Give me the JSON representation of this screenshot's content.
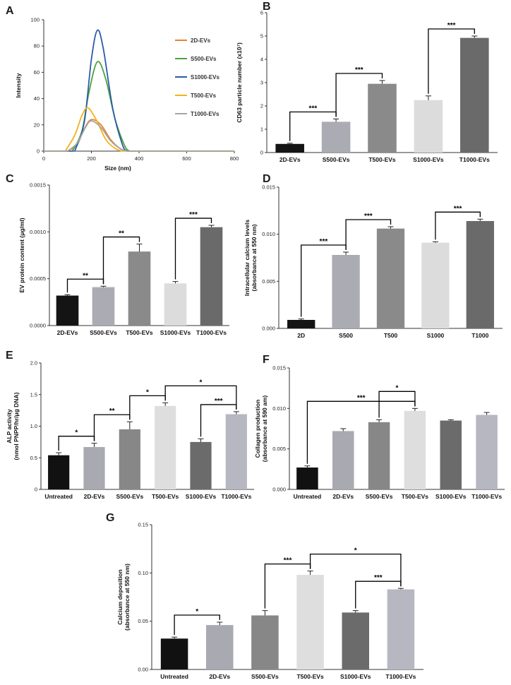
{
  "figure": {
    "panel_letters": [
      "A",
      "B",
      "C",
      "D",
      "E",
      "F",
      "G"
    ]
  },
  "chart_data": [
    {
      "id": "A",
      "type": "line",
      "xlabel": "Size (nm)",
      "ylabel": "Intensity",
      "xlim": [
        0,
        800
      ],
      "ylim": [
        0,
        100
      ],
      "xticks": [
        "0",
        "200",
        "400",
        "600",
        "800"
      ],
      "yticks": [
        "0",
        "20",
        "40",
        "60",
        "80",
        "100"
      ],
      "legend_position": "right",
      "series": [
        {
          "name": "2D-EVs",
          "color": "#e8812f",
          "x": [
            100,
            140,
            170,
            200,
            240,
            280,
            320,
            350
          ],
          "y": [
            0,
            5,
            17,
            24,
            20,
            9,
            2,
            0
          ]
        },
        {
          "name": "S500-EVs",
          "color": "#4ba33b",
          "x": [
            120,
            160,
            190,
            225,
            260,
            300,
            340,
            360
          ],
          "y": [
            0,
            15,
            45,
            68,
            55,
            24,
            4,
            0
          ]
        },
        {
          "name": "S1000-EVs",
          "color": "#2a5ca8",
          "x": [
            130,
            170,
            200,
            225,
            250,
            290,
            330,
            350
          ],
          "y": [
            0,
            22,
            70,
            92,
            78,
            32,
            5,
            0
          ]
        },
        {
          "name": "T500-EVs",
          "color": "#f2b21d",
          "x": [
            90,
            130,
            160,
            185,
            220,
            260,
            300,
            330
          ],
          "y": [
            0,
            12,
            27,
            33,
            24,
            9,
            2,
            0
          ]
        },
        {
          "name": "T1000-EVs",
          "color": "#a5a5a5",
          "x": [
            100,
            140,
            175,
            200,
            240,
            280,
            320,
            350
          ],
          "y": [
            0,
            6,
            18,
            23,
            18,
            8,
            2,
            0
          ]
        }
      ]
    },
    {
      "id": "B",
      "type": "bar",
      "ylabel": "CD63 particle number (x10⁷)",
      "ylim": [
        0,
        6
      ],
      "yticks": [
        "0",
        "1",
        "2",
        "3",
        "4",
        "5",
        "6"
      ],
      "categories": [
        "2D-EVs",
        "S500-EVs",
        "T500-EVs",
        "S1000-EVs",
        "T1000-EVs"
      ],
      "values": [
        0.37,
        1.32,
        2.95,
        2.25,
        4.92
      ],
      "errors": [
        0.03,
        0.12,
        0.14,
        0.18,
        0.08
      ],
      "colors": [
        "#141414",
        "#ababb3",
        "#8a8a8a",
        "#dcdcdc",
        "#6a6a6a"
      ],
      "significance": [
        {
          "from": 0,
          "to": 1,
          "label": "***"
        },
        {
          "from": 1,
          "to": 2,
          "label": "***"
        },
        {
          "from": 3,
          "to": 4,
          "label": "***"
        }
      ]
    },
    {
      "id": "C",
      "type": "bar",
      "ylabel": "EV protein content (μg/ml)",
      "ylim": [
        0,
        0.0015
      ],
      "yticks": [
        "0.0000",
        "0.0005",
        "0.0010",
        "0.0015"
      ],
      "categories": [
        "2D-EVs",
        "S500-EVs",
        "T500-EVs",
        "S1000-EVs",
        "T1000-EVs"
      ],
      "values": [
        0.00032,
        0.00041,
        0.00079,
        0.00045,
        0.00105
      ],
      "errors": [
        1e-05,
        1e-05,
        8e-05,
        2e-05,
        2e-05
      ],
      "colors": [
        "#141414",
        "#ababb3",
        "#8a8a8a",
        "#dcdcdc",
        "#6a6a6a"
      ],
      "significance": [
        {
          "from": 0,
          "to": 1,
          "label": "**"
        },
        {
          "from": 1,
          "to": 2,
          "label": "**"
        },
        {
          "from": 3,
          "to": 4,
          "label": "***"
        }
      ]
    },
    {
      "id": "D",
      "type": "bar",
      "ylabel": "Intracellular calcium levels",
      "ylabel2": "(absorbance at 550 nm)",
      "ylim": [
        0,
        0.015
      ],
      "yticks": [
        "0.000",
        "0.005",
        "0.010",
        "0.015"
      ],
      "categories": [
        "2D",
        "S500",
        "T500",
        "S1000",
        "T1000"
      ],
      "values": [
        0.0009,
        0.0078,
        0.0106,
        0.0091,
        0.0114
      ],
      "errors": [
        0.0001,
        0.0003,
        0.0002,
        0.0001,
        0.0002
      ],
      "colors": [
        "#141414",
        "#ababb3",
        "#8a8a8a",
        "#dcdcdc",
        "#6a6a6a"
      ],
      "significance": [
        {
          "from": 0,
          "to": 1,
          "label": "***"
        },
        {
          "from": 1,
          "to": 2,
          "label": "***"
        },
        {
          "from": 3,
          "to": 4,
          "label": "***"
        }
      ]
    },
    {
      "id": "E",
      "type": "bar",
      "ylabel": "ALP activity",
      "ylabel2": "(nmol PNPP/hr/μg DNA)",
      "ylim": [
        0,
        2.0
      ],
      "yticks": [
        "0",
        "0.5",
        "1.0",
        "1.5",
        "2.0"
      ],
      "categories": [
        "Untreated",
        "2D-EVs",
        "S500-EVs",
        "T500-EVs",
        "S1000-EVs",
        "T1000-EVs"
      ],
      "values": [
        0.54,
        0.67,
        0.95,
        1.32,
        0.75,
        1.19
      ],
      "errors": [
        0.04,
        0.06,
        0.12,
        0.05,
        0.05,
        0.04
      ],
      "colors": [
        "#111111",
        "#a9a9b2",
        "#878787",
        "#dedede",
        "#6b6b6b",
        "#b7b7c2"
      ],
      "significance": [
        {
          "from": 0,
          "to": 1,
          "label": "*"
        },
        {
          "from": 1,
          "to": 2,
          "label": "**"
        },
        {
          "from": 2,
          "to": 3,
          "label": "*"
        },
        {
          "from": 3,
          "to": 5,
          "label": "*"
        },
        {
          "from": 4,
          "to": 5,
          "label": "***"
        }
      ]
    },
    {
      "id": "F",
      "type": "bar",
      "ylabel": "Collagen production",
      "ylabel2": "(absorbance at 590 am)",
      "ylim": [
        0,
        0.015
      ],
      "yticks": [
        "0.000",
        "0.005",
        "0.010",
        "0.015"
      ],
      "categories": [
        "Untreated",
        "2D-EVs",
        "S500-EVs",
        "T500-EVs",
        "S1000-EVs",
        "T1000-EVs"
      ],
      "values": [
        0.0027,
        0.0072,
        0.0083,
        0.0097,
        0.0085,
        0.0092
      ],
      "errors": [
        0.0002,
        0.0003,
        0.0003,
        0.0003,
        0.0001,
        0.0003
      ],
      "colors": [
        "#111111",
        "#a9a9b2",
        "#878787",
        "#dedede",
        "#6b6b6b",
        "#b7b7c2"
      ],
      "significance": [
        {
          "from": 0,
          "to": 3,
          "label": "***"
        },
        {
          "from": 2,
          "to": 3,
          "label": "*"
        }
      ]
    },
    {
      "id": "G",
      "type": "bar",
      "ylabel": "Calcium deposition",
      "ylabel2": "(absorbance at 550 nm)",
      "ylim": [
        0,
        0.15
      ],
      "yticks": [
        "0.00",
        "0.05",
        "0.10",
        "0.15"
      ],
      "categories": [
        "Untreated",
        "2D-EVs",
        "S500-EVs",
        "T500-EVs",
        "S1000-EVs",
        "T1000-EVs"
      ],
      "values": [
        0.032,
        0.046,
        0.056,
        0.098,
        0.059,
        0.083
      ],
      "errors": [
        0.0015,
        0.003,
        0.005,
        0.004,
        0.002,
        0.001
      ],
      "colors": [
        "#111111",
        "#a9a9b2",
        "#878787",
        "#dedede",
        "#6b6b6b",
        "#b7b7c2"
      ],
      "significance": [
        {
          "from": 0,
          "to": 1,
          "label": "*"
        },
        {
          "from": 2,
          "to": 3,
          "label": "***"
        },
        {
          "from": 3,
          "to": 5,
          "label": "*"
        },
        {
          "from": 4,
          "to": 5,
          "label": "***"
        }
      ]
    }
  ]
}
